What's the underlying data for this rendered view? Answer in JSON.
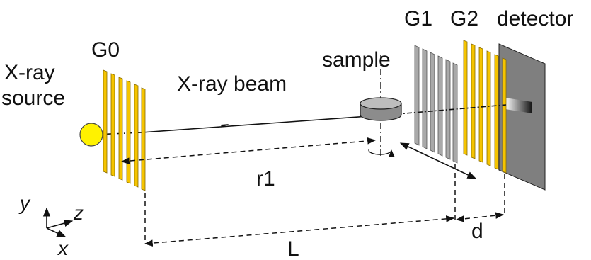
{
  "labels": {
    "source_line1": "X-ray",
    "source_line2": "source",
    "g0": "G0",
    "beam": "X-ray beam",
    "sample": "sample",
    "g1": "G1",
    "g2": "G2",
    "detector": "detector",
    "r1": "r1",
    "L": "L",
    "d": "d"
  },
  "axes": {
    "y": "y",
    "z": "z",
    "x": "x"
  },
  "colors": {
    "grating_gold": "#f5c400",
    "grating_gold_edge": "#8a6d00",
    "grating_gray": "#a9a9a9",
    "detector_gray": "#7f7f7f",
    "source_yellow": "#fff200",
    "sample_gray": "#8c8c8c",
    "line": "#111111"
  }
}
